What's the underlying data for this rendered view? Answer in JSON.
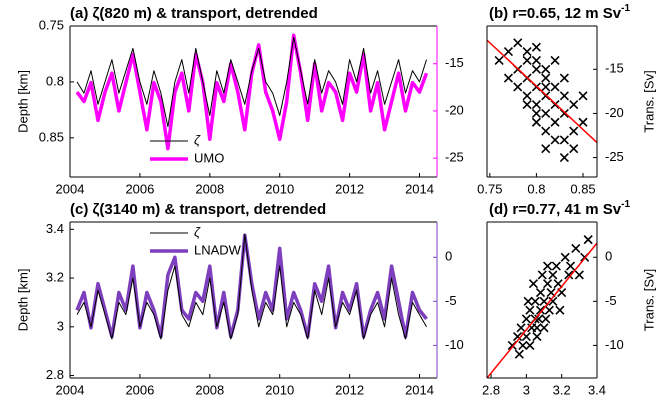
{
  "chart_data": [
    {
      "type": "line",
      "title": "(a) ζ(820 m) & transport, detrended",
      "ylabel": "Depth [km]",
      "x": [
        2004.2,
        2004.4,
        2004.6,
        2004.8,
        2005.0,
        2005.2,
        2005.4,
        2005.6,
        2005.8,
        2006.0,
        2006.2,
        2006.4,
        2006.6,
        2006.8,
        2007.0,
        2007.2,
        2007.4,
        2007.6,
        2007.8,
        2008.0,
        2008.2,
        2008.4,
        2008.6,
        2008.8,
        2009.0,
        2009.2,
        2009.4,
        2009.6,
        2009.8,
        2010.0,
        2010.2,
        2010.4,
        2010.6,
        2010.8,
        2011.0,
        2011.2,
        2011.4,
        2011.6,
        2011.8,
        2012.0,
        2012.2,
        2012.4,
        2012.6,
        2012.8,
        2013.0,
        2013.2,
        2013.4,
        2013.6,
        2013.8,
        2014.0,
        2014.2
      ],
      "xlim": [
        2004,
        2014.5
      ],
      "xticks": [
        2004,
        2006,
        2008,
        2010,
        2012,
        2014
      ],
      "ylim": [
        0.75,
        0.885
      ],
      "yticks": [
        0.75,
        0.8,
        0.85
      ],
      "y_reversed": true,
      "y2lim": [
        -27,
        -11
      ],
      "y2ticks": [
        -25,
        -20,
        -15
      ],
      "series": [
        {
          "name": "ζ",
          "color": "#000000",
          "width": 1,
          "values": [
            0.8,
            0.81,
            0.79,
            0.82,
            0.8,
            0.78,
            0.81,
            0.79,
            0.77,
            0.8,
            0.82,
            0.79,
            0.81,
            0.84,
            0.8,
            0.78,
            0.81,
            0.77,
            0.8,
            0.83,
            0.79,
            0.81,
            0.78,
            0.8,
            0.82,
            0.79,
            0.77,
            0.8,
            0.81,
            0.83,
            0.8,
            0.76,
            0.79,
            0.82,
            0.78,
            0.81,
            0.79,
            0.8,
            0.82,
            0.78,
            0.8,
            0.77,
            0.81,
            0.79,
            0.82,
            0.8,
            0.78,
            0.81,
            0.79,
            0.8,
            0.78
          ]
        },
        {
          "name": "UMO",
          "color": "#ff00ff",
          "width": 3.5,
          "axis": "y2",
          "values": [
            -18,
            -19,
            -17,
            -21,
            -18,
            -16,
            -20,
            -17,
            -14,
            -18,
            -22,
            -17,
            -19,
            -24,
            -18,
            -16,
            -20,
            -14,
            -17,
            -23,
            -17,
            -19,
            -15,
            -18,
            -22,
            -16,
            -13,
            -18,
            -20,
            -23,
            -19,
            -12,
            -16,
            -21,
            -15,
            -20,
            -17,
            -18,
            -21,
            -16,
            -18,
            -14,
            -20,
            -17,
            -22,
            -19,
            -16,
            -20,
            -17,
            -18,
            -16
          ]
        }
      ]
    },
    {
      "type": "scatter",
      "title": "(b) r=0.65, 12 m Sv",
      "title_superscript": "-1",
      "ylabel": "Trans. [Sv]",
      "y_axis_side": "right",
      "xlim": [
        0.747,
        0.865
      ],
      "xticks": [
        0.75,
        0.8,
        0.85
      ],
      "ylim": [
        -27.2,
        -10.1
      ],
      "yticks": [
        -25,
        -20,
        -15
      ],
      "color": "#000000",
      "x": [
        0.76,
        0.77,
        0.78,
        0.78,
        0.79,
        0.79,
        0.79,
        0.8,
        0.8,
        0.8,
        0.8,
        0.81,
        0.81,
        0.81,
        0.81,
        0.82,
        0.82,
        0.82,
        0.83,
        0.83,
        0.83,
        0.84,
        0.84,
        0.85,
        0.78,
        0.79,
        0.8,
        0.81,
        0.82,
        0.83,
        0.8,
        0.81,
        0.79,
        0.82,
        0.84,
        0.77,
        0.85,
        0.8,
        0.83,
        0.81
      ],
      "y": [
        -14,
        -13,
        -15,
        -17,
        -14,
        -16,
        -18,
        -15,
        -17,
        -19,
        -21,
        -16,
        -18,
        -20,
        -22,
        -17,
        -19,
        -21,
        -18,
        -20,
        -23,
        -19,
        -22,
        -21,
        -12,
        -13,
        -14,
        -15,
        -23,
        -16,
        -20,
        -24,
        -19,
        -14,
        -24,
        -16,
        -18,
        -12.5,
        -25,
        -17
      ],
      "fit": {
        "color": "#ff0000",
        "x": [
          0.747,
          0.865
        ],
        "y": [
          -11.7,
          -23.3
        ]
      }
    },
    {
      "type": "line",
      "title": "(c) ζ(3140 m) & transport, detrended",
      "ylabel": "Depth [km]",
      "x": [
        2004.2,
        2004.4,
        2004.6,
        2004.8,
        2005.0,
        2005.2,
        2005.4,
        2005.6,
        2005.8,
        2006.0,
        2006.2,
        2006.4,
        2006.6,
        2006.8,
        2007.0,
        2007.2,
        2007.4,
        2007.6,
        2007.8,
        2008.0,
        2008.2,
        2008.4,
        2008.6,
        2008.8,
        2009.0,
        2009.2,
        2009.4,
        2009.6,
        2009.8,
        2010.0,
        2010.2,
        2010.4,
        2010.6,
        2010.8,
        2011.0,
        2011.2,
        2011.4,
        2011.6,
        2011.8,
        2012.0,
        2012.2,
        2012.4,
        2012.6,
        2012.8,
        2013.0,
        2013.2,
        2013.4,
        2013.6,
        2013.8,
        2014.0,
        2014.2
      ],
      "xlim": [
        2004,
        2014.5
      ],
      "xticks": [
        2004,
        2006,
        2008,
        2010,
        2012,
        2014
      ],
      "ylim": [
        2.79,
        3.43
      ],
      "yticks": [
        2.8,
        3,
        3.2,
        3.4
      ],
      "y_reversed": false,
      "y2lim": [
        -13.7,
        4
      ],
      "y2ticks": [
        -10,
        -5,
        0
      ],
      "series": [
        {
          "name": "ζ",
          "color": "#000000",
          "width": 1,
          "values": [
            3.05,
            3.1,
            3.0,
            3.15,
            3.05,
            2.95,
            3.1,
            3.05,
            3.2,
            3.0,
            3.1,
            3.05,
            2.95,
            3.15,
            3.25,
            3.05,
            3.0,
            3.1,
            3.05,
            3.2,
            3.0,
            3.1,
            2.95,
            3.05,
            3.38,
            3.15,
            3.0,
            3.1,
            3.05,
            3.25,
            3.0,
            3.1,
            3.05,
            2.95,
            3.15,
            3.05,
            3.2,
            3.0,
            3.1,
            3.05,
            3.15,
            2.95,
            3.05,
            3.1,
            3.0,
            3.2,
            3.05,
            2.95,
            3.1,
            3.05,
            3.0
          ]
        },
        {
          "name": "LNADW",
          "color": "#7e3fbf",
          "width": 3.5,
          "axis": "y2",
          "values": [
            -6,
            -4,
            -8,
            -3,
            -6,
            -9,
            -4,
            -6,
            -1,
            -8,
            -4,
            -6,
            -9,
            -2,
            0,
            -6,
            -7,
            -4,
            -5,
            -1,
            -8,
            -4,
            -9,
            -6,
            2.5,
            -3,
            -7,
            -4,
            -6,
            1,
            -7,
            -4,
            -6,
            -9,
            -3,
            -5,
            -1,
            -8,
            -4,
            -6,
            -3,
            -9,
            -6,
            -4,
            -7,
            -1,
            -5,
            -9,
            -4,
            -6,
            -7
          ]
        }
      ]
    },
    {
      "type": "scatter",
      "title": "(d) r=0.77, 41 m Sv",
      "title_superscript": "-1",
      "ylabel": "Trans. [Sv]",
      "y_axis_side": "right",
      "xlim": [
        2.777,
        3.4
      ],
      "xticks": [
        2.8,
        3,
        3.2,
        3.4
      ],
      "ylim": [
        -13.7,
        4
      ],
      "yticks": [
        -10,
        -5,
        0
      ],
      "color": "#000000",
      "x": [
        2.92,
        2.95,
        2.97,
        2.98,
        3.0,
        3.0,
        3.02,
        3.03,
        3.05,
        3.05,
        3.06,
        3.08,
        3.08,
        3.1,
        3.1,
        3.12,
        3.13,
        3.15,
        3.15,
        3.18,
        3.2,
        3.22,
        3.25,
        3.28,
        3.3,
        3.35,
        2.96,
        3.01,
        3.04,
        3.07,
        3.09,
        3.11,
        3.14,
        3.17,
        3.02,
        3.06,
        3.12,
        3.19,
        3.24,
        3.33
      ],
      "y": [
        -10,
        -9,
        -8,
        -10,
        -7,
        -9,
        -6,
        -8,
        -5,
        -7,
        -9,
        -4,
        -6,
        -5,
        -8,
        -3,
        -6,
        -2,
        -5,
        -3,
        -4,
        0,
        -1,
        1,
        -2,
        2,
        -11,
        -5,
        -3,
        -7,
        -2,
        -7,
        -4,
        -1,
        -10,
        -8,
        -1,
        -6,
        -2,
        0
      ],
      "fit": {
        "color": "#ff0000",
        "x": [
          2.777,
          3.4
        ],
        "y": [
          -13.7,
          1.6
        ]
      }
    }
  ]
}
